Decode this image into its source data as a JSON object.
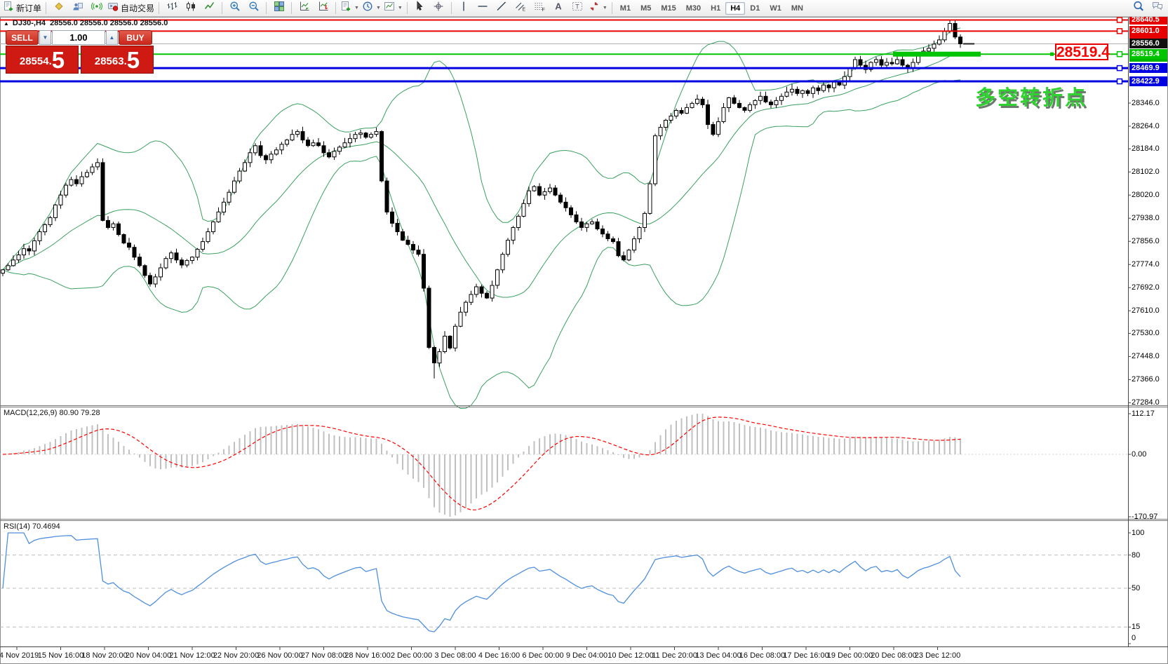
{
  "toolbar": {
    "timeframes": [
      "M1",
      "M5",
      "M15",
      "M30",
      "H1",
      "H4",
      "D1",
      "W1",
      "MN"
    ],
    "active_timeframe": "H4",
    "items": [
      {
        "type": "button",
        "name": "new-order-button",
        "icon": "doc-plus",
        "label": "新订单"
      },
      {
        "type": "sep"
      },
      {
        "type": "button",
        "name": "metaeditor-button",
        "icon": "diamond"
      },
      {
        "type": "button",
        "name": "profiles-button",
        "icon": "person"
      },
      {
        "type": "button",
        "name": "signals-button",
        "icon": "signal"
      },
      {
        "type": "button",
        "name": "autotrading-button",
        "icon": "autotrade",
        "label": "自动交易"
      },
      {
        "type": "sep"
      },
      {
        "type": "button",
        "name": "bar-chart-button",
        "icon": "bars"
      },
      {
        "type": "button",
        "name": "candlestick-chart-button",
        "icon": "candles"
      },
      {
        "type": "button",
        "name": "line-chart-button",
        "icon": "linechart"
      },
      {
        "type": "sep"
      },
      {
        "type": "button",
        "name": "zoom-in-button",
        "icon": "zoom-in"
      },
      {
        "type": "button",
        "name": "zoom-out-button",
        "icon": "zoom-out"
      },
      {
        "type": "sep"
      },
      {
        "type": "button",
        "name": "tile-windows-button",
        "icon": "tile"
      },
      {
        "type": "sep"
      },
      {
        "type": "button",
        "name": "auto-scroll-button",
        "icon": "autoscroll"
      },
      {
        "type": "button",
        "name": "chart-shift-button",
        "icon": "chartshift"
      },
      {
        "type": "sep"
      },
      {
        "type": "button",
        "name": "indicators-button",
        "icon": "doc-plus",
        "dropdown": true
      },
      {
        "type": "button",
        "name": "periods-button",
        "icon": "clock",
        "dropdown": true
      },
      {
        "type": "button",
        "name": "templates-button",
        "icon": "template",
        "dropdown": true
      },
      {
        "type": "sep"
      },
      {
        "type": "button",
        "name": "cursor-button",
        "icon": "cursor"
      },
      {
        "type": "button",
        "name": "crosshair-button",
        "icon": "crosshair"
      },
      {
        "type": "sep"
      },
      {
        "type": "button",
        "name": "vertical-line-button",
        "icon": "vline"
      },
      {
        "type": "button",
        "name": "horizontal-line-button",
        "icon": "hline"
      },
      {
        "type": "button",
        "name": "trendline-button",
        "icon": "trend"
      },
      {
        "type": "button",
        "name": "equidistant-channel-button",
        "icon": "channel"
      },
      {
        "type": "button",
        "name": "fibonacci-button",
        "icon": "fibo"
      },
      {
        "type": "button",
        "name": "text-button",
        "icon": "textA"
      },
      {
        "type": "button",
        "name": "text-label-button",
        "icon": "textT"
      },
      {
        "type": "button",
        "name": "arrows-button",
        "icon": "arrows",
        "dropdown": true
      },
      {
        "type": "sep"
      },
      {
        "type": "timeframes"
      },
      {
        "type": "spring"
      },
      {
        "type": "button",
        "name": "search-button",
        "icon": "search"
      },
      {
        "type": "button",
        "name": "chat-button",
        "icon": "chat"
      }
    ]
  },
  "chart_title": {
    "collapse_glyph": "▲",
    "text": "DJ30-,H4  28556.0 28556.0 28556.0 28556.0"
  },
  "trade_panel": {
    "sell_label": "SELL",
    "buy_label": "BUY",
    "volume": "1.00",
    "volume_down_glyph": "▼",
    "volume_up_glyph": "▲",
    "sell_price": "28554.5",
    "buy_price": "28563.5",
    "sell_main": "28554.",
    "sell_big": "5",
    "buy_main": "28563.",
    "buy_big": "5"
  },
  "annotation": {
    "text": "多空转折点",
    "color": "#2fd32f"
  },
  "callout": {
    "text": "28519.4"
  },
  "levels": [
    {
      "price": 28640.5,
      "label": "28640.5",
      "color": "#e60000",
      "width": 2
    },
    {
      "price": 28601.0,
      "label": "28601.0",
      "color": "#e60000",
      "width": 2
    },
    {
      "price": 28592.0,
      "label": "28592.0",
      "color": "#e60000",
      "clipped": true
    },
    {
      "price": 28556.0,
      "label": "28556.0",
      "color": "#111111",
      "width": 1,
      "line_color": "#b0b0b0",
      "current": true
    },
    {
      "price": 28519.4,
      "label": "28519.4",
      "color": "#00c400",
      "width": 2,
      "thick_segment": [
        1273,
        1398
      ]
    },
    {
      "price": 28510.6,
      "label": "28510.6",
      "color": "#00b400",
      "clipped": true
    },
    {
      "price": 28469.9,
      "label": "28469.9",
      "color": "#0000e0",
      "width": 3
    },
    {
      "price": 28422.9,
      "label": "28422.9",
      "color": "#0000e0",
      "width": 3
    }
  ],
  "price_scale": [
    28346.0,
    28264.0,
    28184.0,
    28102.0,
    28020.0,
    27938.0,
    27856.0,
    27774.0,
    27692.0,
    27610.0,
    27530.0,
    27448.0,
    27366.0,
    27284.0
  ],
  "macd": {
    "label": "MACD(12,26,9) 80.90 79.28",
    "axis": [
      "112.17",
      "0.00",
      "-170.97"
    ],
    "axis_values": [
      112.17,
      0,
      -170.97
    ]
  },
  "rsi": {
    "label": "RSI(14) 70.4694",
    "axis": [
      "100",
      "80",
      "50",
      "15",
      "0"
    ],
    "axis_values": [
      100,
      80,
      50,
      15,
      0
    ],
    "levels": [
      80,
      50,
      15
    ]
  },
  "time_labels": [
    "14 Nov 2019",
    "15 Nov 16:00",
    "18 Nov 20:00",
    "20 Nov 04:00",
    "21 Nov 12:00",
    "22 Nov 20:00",
    "26 Nov 00:00",
    "27 Nov 08:00",
    "28 Nov 16:00",
    "2 Dec 00:00",
    "3 Dec 08:00",
    "4 Dec 16:00",
    "6 Dec 00:00",
    "9 Dec 04:00",
    "10 Dec 12:00",
    "11 Dec 20:00",
    "13 Dec 04:00",
    "16 Dec 08:00",
    "17 Dec 16:00",
    "19 Dec 00:00",
    "20 Dec 08:00",
    "23 Dec 12:00"
  ],
  "chart_data": {
    "type": "candlestick",
    "symbol": "DJ30-",
    "timeframe": "H4",
    "visible_range": [
      "14 Nov 2019",
      "23 Dec 12:00"
    ],
    "price_axis_range": [
      27284,
      28640.5
    ],
    "closes": [
      27755,
      27770,
      27790,
      27808,
      27830,
      27822,
      27858,
      27890,
      27915,
      27940,
      27985,
      28020,
      28055,
      28075,
      28060,
      28085,
      28100,
      28120,
      28135,
      27930,
      27905,
      27918,
      27880,
      27850,
      27835,
      27800,
      27770,
      27735,
      27705,
      27730,
      27762,
      27795,
      27815,
      27790,
      27772,
      27788,
      27800,
      27828,
      27855,
      27890,
      27925,
      27960,
      27995,
      28030,
      28070,
      28105,
      28135,
      28170,
      28195,
      28160,
      28145,
      28165,
      28180,
      28200,
      28215,
      28235,
      28245,
      28215,
      28195,
      28205,
      28195,
      28170,
      28155,
      28175,
      28190,
      28205,
      28220,
      28235,
      28240,
      28225,
      28235,
      28245,
      28070,
      27960,
      27920,
      27890,
      27860,
      27845,
      27825,
      27810,
      27690,
      27480,
      27425,
      27465,
      27520,
      27478,
      27555,
      27605,
      27640,
      27668,
      27695,
      27672,
      27655,
      27700,
      27755,
      27810,
      27860,
      27905,
      27945,
      27990,
      28035,
      28050,
      28020,
      28032,
      28045,
      28020,
      27995,
      27975,
      27950,
      27925,
      27905,
      27918,
      27925,
      27900,
      27882,
      27865,
      27855,
      27805,
      27790,
      27825,
      27865,
      27905,
      27955,
      28060,
      28230,
      28260,
      28285,
      28300,
      28320,
      28310,
      28330,
      28345,
      28360,
      28340,
      28270,
      28235,
      28280,
      28330,
      28365,
      28345,
      28330,
      28320,
      28340,
      28355,
      28370,
      28350,
      28340,
      28355,
      28370,
      28385,
      28395,
      28380,
      28390,
      28380,
      28400,
      28390,
      28410,
      28400,
      28420,
      28410,
      28440,
      28470,
      28500,
      28480,
      28465,
      28490,
      28500,
      28480,
      28490,
      28485,
      28500,
      28480,
      28470,
      28490,
      28515,
      28530,
      28540,
      28555,
      28570,
      28600,
      28628,
      28580,
      28556
    ],
    "wick_overrides": {
      "82": {
        "low": 27370
      },
      "180": {
        "high": 28641
      }
    },
    "indicators": {
      "bollinger": {
        "period": 20,
        "deviation": 2,
        "color": "#3aa05f"
      },
      "macd": {
        "params": [
          12,
          26,
          9
        ],
        "main_value": 80.9,
        "signal_value": 79.28,
        "axis_max": 112.17,
        "axis_min": -170.97,
        "bar_color": "#c0c0c0",
        "signal_color": "#ff0000"
      },
      "rsi": {
        "period": 14,
        "value": 70.4694,
        "color": "#4f8fde",
        "levels": [
          80,
          50,
          15
        ]
      }
    }
  }
}
